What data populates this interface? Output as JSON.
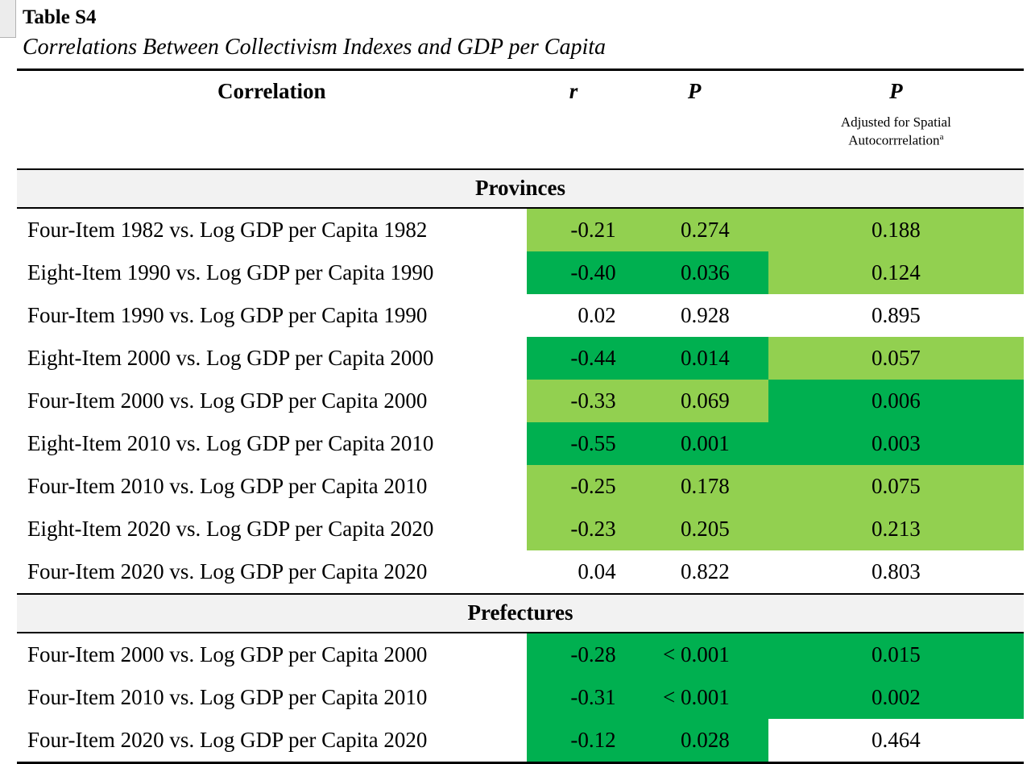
{
  "page": {
    "title": "Table S4",
    "subtitle": "Correlations Between Collectivism Indexes and GDP per Capita"
  },
  "table": {
    "columns": {
      "correlation": "Correlation",
      "r": "r",
      "p": "P",
      "p_adj": "P",
      "p_adj_note_line1": "Adjusted for Spatial",
      "p_adj_note_line2": "Autocorrrelation",
      "p_adj_note_sup": "a"
    },
    "colors": {
      "light_green": "#92d050",
      "dark_green": "#00b050",
      "section_bg": "#f2f2f2"
    },
    "sections": [
      {
        "label": "Provinces",
        "rows": [
          {
            "correlation": "Four-Item 1982 vs. Log GDP per Capita 1982",
            "r": "-0.21",
            "p": "0.274",
            "p_adj": "0.188",
            "rp_color": "light_green",
            "adj_color": "light_green"
          },
          {
            "correlation": "Eight-Item 1990 vs. Log GDP per Capita 1990",
            "r": "-0.40",
            "p": "0.036",
            "p_adj": "0.124",
            "rp_color": "dark_green",
            "adj_color": "light_green"
          },
          {
            "correlation": "Four-Item 1990 vs. Log GDP per Capita 1990",
            "r": "0.02",
            "p": "0.928",
            "p_adj": "0.895",
            "rp_color": "none",
            "adj_color": "none"
          },
          {
            "correlation": "Eight-Item 2000 vs. Log GDP per Capita 2000",
            "r": "-0.44",
            "p": "0.014",
            "p_adj": "0.057",
            "rp_color": "dark_green",
            "adj_color": "light_green"
          },
          {
            "correlation": "Four-Item 2000 vs. Log GDP per Capita 2000",
            "r": "-0.33",
            "p": "0.069",
            "p_adj": "0.006",
            "rp_color": "light_green",
            "adj_color": "dark_green"
          },
          {
            "correlation": "Eight-Item 2010 vs. Log GDP per Capita 2010",
            "r": "-0.55",
            "p": "0.001",
            "p_adj": "0.003",
            "rp_color": "dark_green",
            "adj_color": "dark_green"
          },
          {
            "correlation": "Four-Item 2010 vs. Log GDP per Capita 2010",
            "r": "-0.25",
            "p": "0.178",
            "p_adj": "0.075",
            "rp_color": "light_green",
            "adj_color": "light_green"
          },
          {
            "correlation": "Eight-Item 2020 vs. Log GDP per Capita 2020",
            "r": "-0.23",
            "p": "0.205",
            "p_adj": "0.213",
            "rp_color": "light_green",
            "adj_color": "light_green"
          },
          {
            "correlation": "Four-Item 2020 vs. Log GDP per Capita 2020",
            "r": "0.04",
            "p": "0.822",
            "p_adj": "0.803",
            "rp_color": "none",
            "adj_color": "none"
          }
        ]
      },
      {
        "label": "Prefectures",
        "rows": [
          {
            "correlation": "Four-Item 2000 vs. Log GDP per Capita 2000",
            "r": "-0.28",
            "p": "< 0.001",
            "p_adj": "0.015",
            "rp_color": "dark_green",
            "adj_color": "dark_green"
          },
          {
            "correlation": "Four-Item 2010 vs. Log GDP per Capita 2010",
            "r": "-0.31",
            "p": "< 0.001",
            "p_adj": "0.002",
            "rp_color": "dark_green",
            "adj_color": "dark_green"
          },
          {
            "correlation": "Four-Item 2020 vs. Log GDP per Capita 2020",
            "r": "-0.12",
            "p": "0.028",
            "p_adj": "0.464",
            "rp_color": "dark_green",
            "adj_color": "none"
          }
        ]
      }
    ]
  }
}
